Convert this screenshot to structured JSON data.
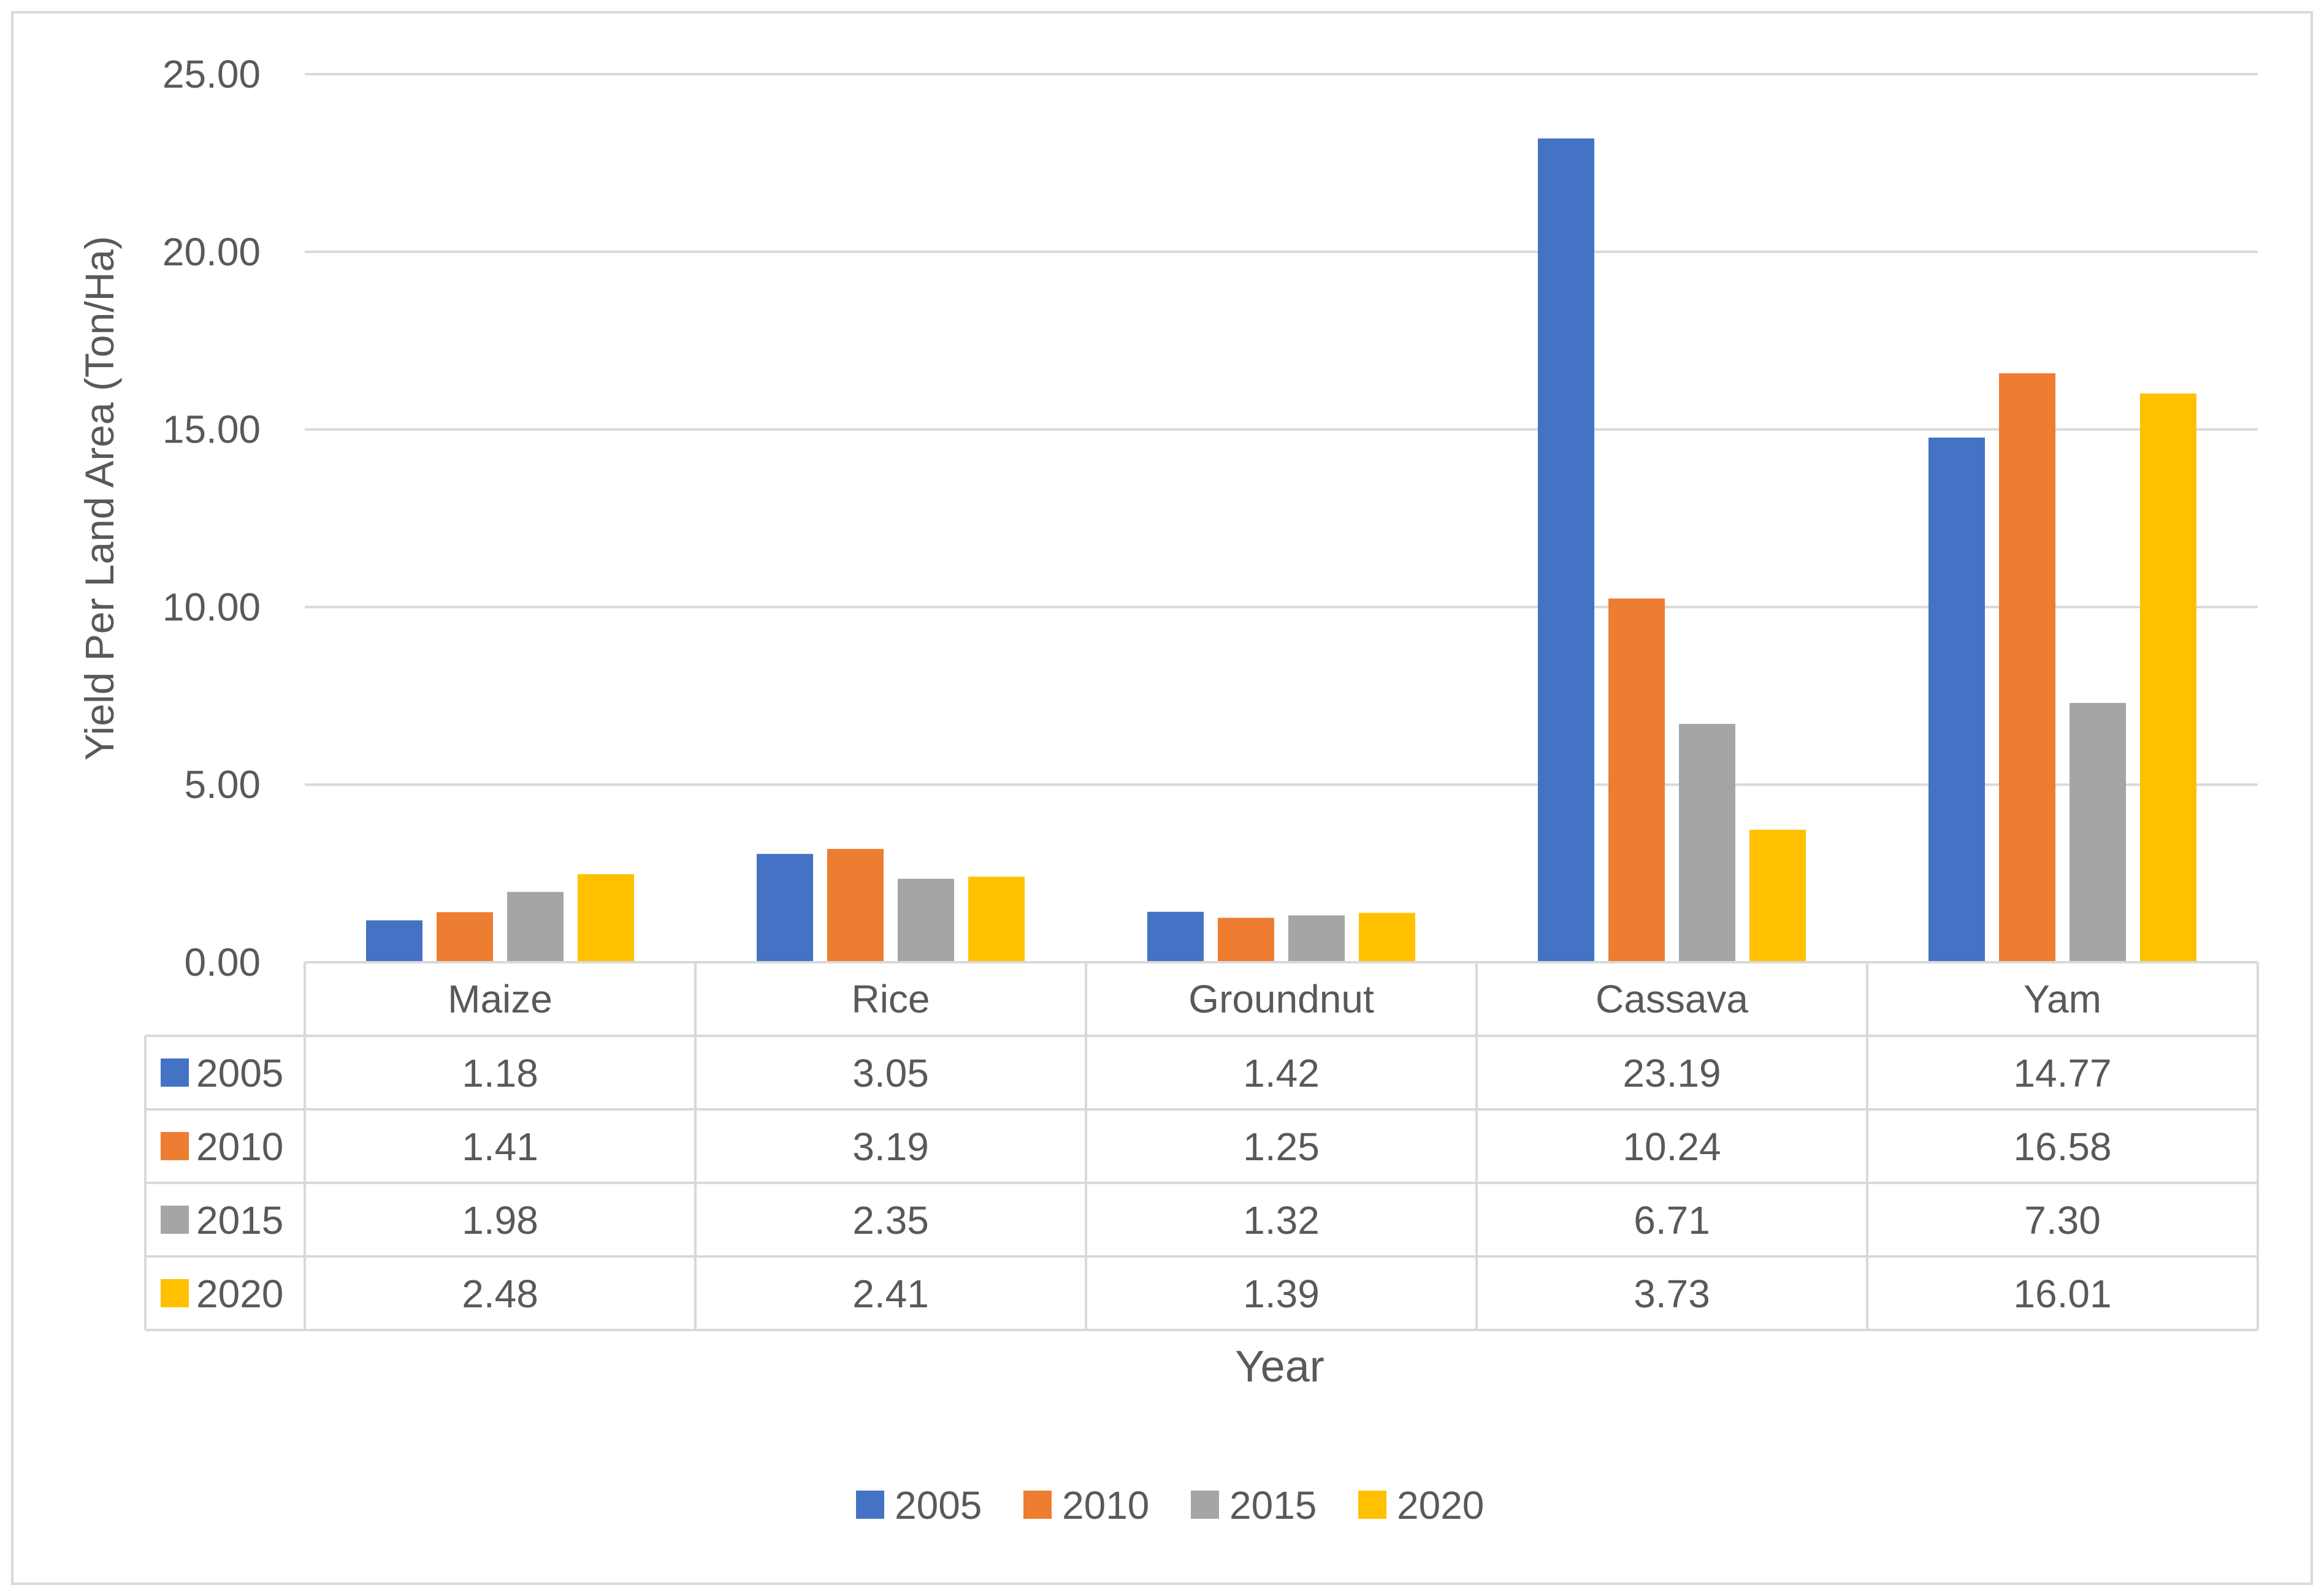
{
  "chart_data": {
    "type": "bar",
    "title": "",
    "xlabel": "Year",
    "ylabel": "Yield Per Land Area (Ton/Ha)",
    "ylim": [
      0,
      25
    ],
    "yticks": [
      "0.00",
      "5.00",
      "10.00",
      "15.00",
      "20.00",
      "25.00"
    ],
    "grid": true,
    "legend_position": "bottom",
    "categories": [
      "Maize",
      "Rice",
      "Groundnut",
      "Cassava",
      "Yam"
    ],
    "series": [
      {
        "name": "2005",
        "color": "#4472C4",
        "values": [
          1.18,
          3.05,
          1.42,
          23.19,
          14.77
        ],
        "labels": [
          "1.18",
          "3.05",
          "1.42",
          "23.19",
          "14.77"
        ]
      },
      {
        "name": "2010",
        "color": "#ED7D31",
        "values": [
          1.41,
          3.19,
          1.25,
          10.24,
          16.58
        ],
        "labels": [
          "1.41",
          "3.19",
          "1.25",
          "10.24",
          "16.58"
        ]
      },
      {
        "name": "2015",
        "color": "#A5A5A5",
        "values": [
          1.98,
          2.35,
          1.32,
          6.71,
          7.3
        ],
        "labels": [
          "1.98",
          "2.35",
          "1.32",
          "6.71",
          "7.30"
        ]
      },
      {
        "name": "2020",
        "color": "#FFC000",
        "values": [
          2.48,
          2.41,
          1.39,
          3.73,
          16.01
        ],
        "labels": [
          "2.48",
          "2.41",
          "1.39",
          "3.73",
          "16.01"
        ]
      }
    ]
  }
}
